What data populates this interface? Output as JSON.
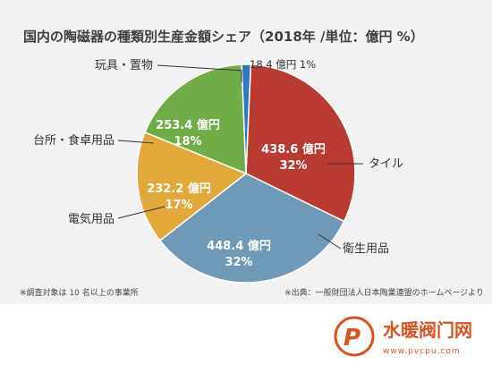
{
  "chart_data": {
    "type": "pie",
    "title": "国内の陶磁器の種類別生産金額シェア（2018年 /単位：億円 %）",
    "unit": "億円",
    "slices": [
      {
        "category": "タイル",
        "value": 438.6,
        "value_label": "438.6 億円",
        "percent": 32,
        "percent_label": "32%",
        "color": "#b83a30"
      },
      {
        "category": "衛生用品",
        "value": 448.4,
        "value_label": "448.4 億円",
        "percent": 32,
        "percent_label": "32%",
        "color": "#6e9ab8"
      },
      {
        "category": "電気用品",
        "value": 232.2,
        "value_label": "232.2 億円",
        "percent": 17,
        "percent_label": "17%",
        "color": "#e2a93a"
      },
      {
        "category": "台所・食卓用品",
        "value": 253.4,
        "value_label": "253.4 億円",
        "percent": 18,
        "percent_label": "18%",
        "color": "#6fae47"
      },
      {
        "category": "玩具・置物",
        "value": 18.4,
        "value_label": "18.4 億円 1%",
        "percent": 1,
        "percent_label": "",
        "color": "#2e78c2"
      }
    ],
    "footnote_left": "※調査対象は 10 名以上の事業所",
    "footnote_right": "※出典：一般財団法人日本陶業連盟のホームページより"
  },
  "watermark": {
    "brand": "水暖阀门网",
    "url": "www.pvcpu.com",
    "colors": {
      "primary": "#d9531e"
    }
  }
}
